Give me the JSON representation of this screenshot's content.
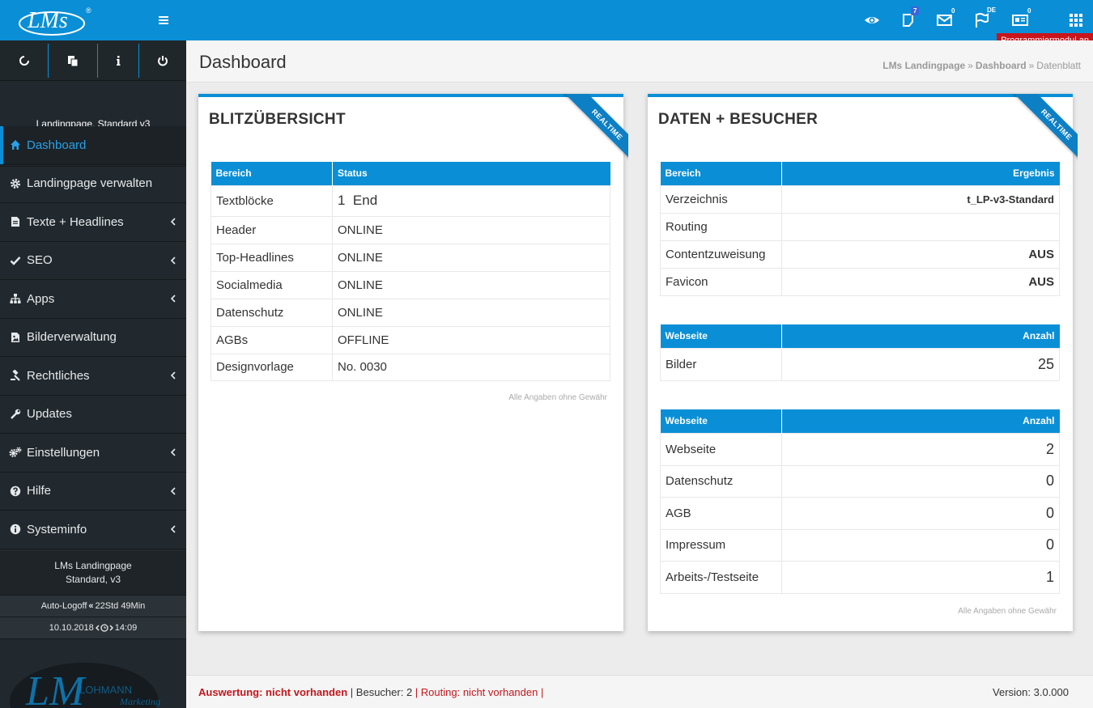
{
  "header": {
    "logo_text": "LMs",
    "badges": {
      "notes": "7",
      "mail": "0",
      "flag": "DE",
      "news": "0"
    },
    "prog_badge": "Programmiermodul an"
  },
  "sidebar": {
    "site_name": "Landingpage, Standard v3",
    "menu": [
      {
        "label": "Dashboard",
        "icon": "home-icon",
        "active": true
      },
      {
        "label": "Landingpage verwalten",
        "icon": "gear-icon"
      },
      {
        "label": "Texte + Headlines",
        "icon": "file-icon"
      },
      {
        "label": "SEO",
        "icon": "check-icon"
      },
      {
        "label": "Apps",
        "icon": "sitemap-icon"
      },
      {
        "label": "Bilderverwaltung",
        "icon": "image-icon"
      },
      {
        "label": "Rechtliches",
        "icon": "gavel-icon"
      },
      {
        "label": "Updates",
        "icon": "wrench-icon"
      },
      {
        "label": "Einstellungen",
        "icon": "gears-icon"
      },
      {
        "label": "Hilfe",
        "icon": "question-icon"
      },
      {
        "label": "Systeminfo",
        "icon": "info-icon"
      }
    ],
    "info_line1": "LMs Landingpage",
    "info_line2": "Standard, v3",
    "autologoff_label": "Auto-Logoff",
    "autologoff_value": "22Std 49Min",
    "date": "10.10.2018",
    "time": "14:09",
    "brand_text": "LOHMANN",
    "brand_sub": "Marketing"
  },
  "page": {
    "title": "Dashboard",
    "breadcrumb": [
      "LMs Landingpage",
      "Dashboard",
      "Datenblatt"
    ]
  },
  "panel1": {
    "title": "BLITZÜBERSICHT",
    "ribbon": "REALTIME",
    "headers": [
      "Bereich",
      "Status"
    ],
    "rows": [
      {
        "bereich": "Textblöcke",
        "status": "1  End",
        "tone": "green"
      },
      {
        "bereich": "Header",
        "status": "ONLINE",
        "tone": "green"
      },
      {
        "bereich": "Top-Headlines",
        "status": "ONLINE",
        "tone": "green"
      },
      {
        "bereich": "Socialmedia",
        "status": "ONLINE",
        "tone": "green"
      },
      {
        "bereich": "Datenschutz",
        "status": "ONLINE",
        "tone": "green"
      },
      {
        "bereich": "AGBs",
        "status": "OFFLINE",
        "tone": "red"
      },
      {
        "bereich": "Designvorlage",
        "status": "No. 0030",
        "tone": "orange"
      }
    ],
    "footnote": "Alle Angaben ohne Gewähr"
  },
  "panel2": {
    "title": "DATEN + BESUCHER",
    "ribbon": "REALTIME",
    "table1": {
      "headers": [
        "Bereich",
        "Ergebnis"
      ],
      "rows": [
        {
          "label": "Verzeichnis",
          "value": "t_LP-v3-Standard"
        },
        {
          "label": "Routing",
          "value": ""
        },
        {
          "label": "Contentzuweisung",
          "value": "AUS"
        },
        {
          "label": "Favicon",
          "value": "AUS"
        }
      ]
    },
    "table2": {
      "headers": [
        "Webseite",
        "Anzahl"
      ],
      "rows": [
        {
          "label": "Bilder",
          "value": "25"
        }
      ]
    },
    "table3": {
      "headers": [
        "Webseite",
        "Anzahl"
      ],
      "rows": [
        {
          "label": "Webseite",
          "value": "2"
        },
        {
          "label": "Datenschutz",
          "value": "0"
        },
        {
          "label": "AGB",
          "value": "0"
        },
        {
          "label": "Impressum",
          "value": "0"
        },
        {
          "label": "Arbeits-/Testseite",
          "value": "1"
        }
      ]
    },
    "footnote": "Alle Angaben ohne Gewähr"
  },
  "footer": {
    "auswertung": "Auswertung: nicht vorhanden",
    "besucher": "Besucher: 2",
    "routing": "Routing: nicht vorhanden",
    "version": "Version: 3.0.000"
  },
  "colors": {
    "primary": "#0a8fd6",
    "sidebar": "#22292e",
    "online": "#2ea02a",
    "offline": "#c4161c",
    "design": "#e0862a",
    "badge_red": "#c9151b"
  }
}
